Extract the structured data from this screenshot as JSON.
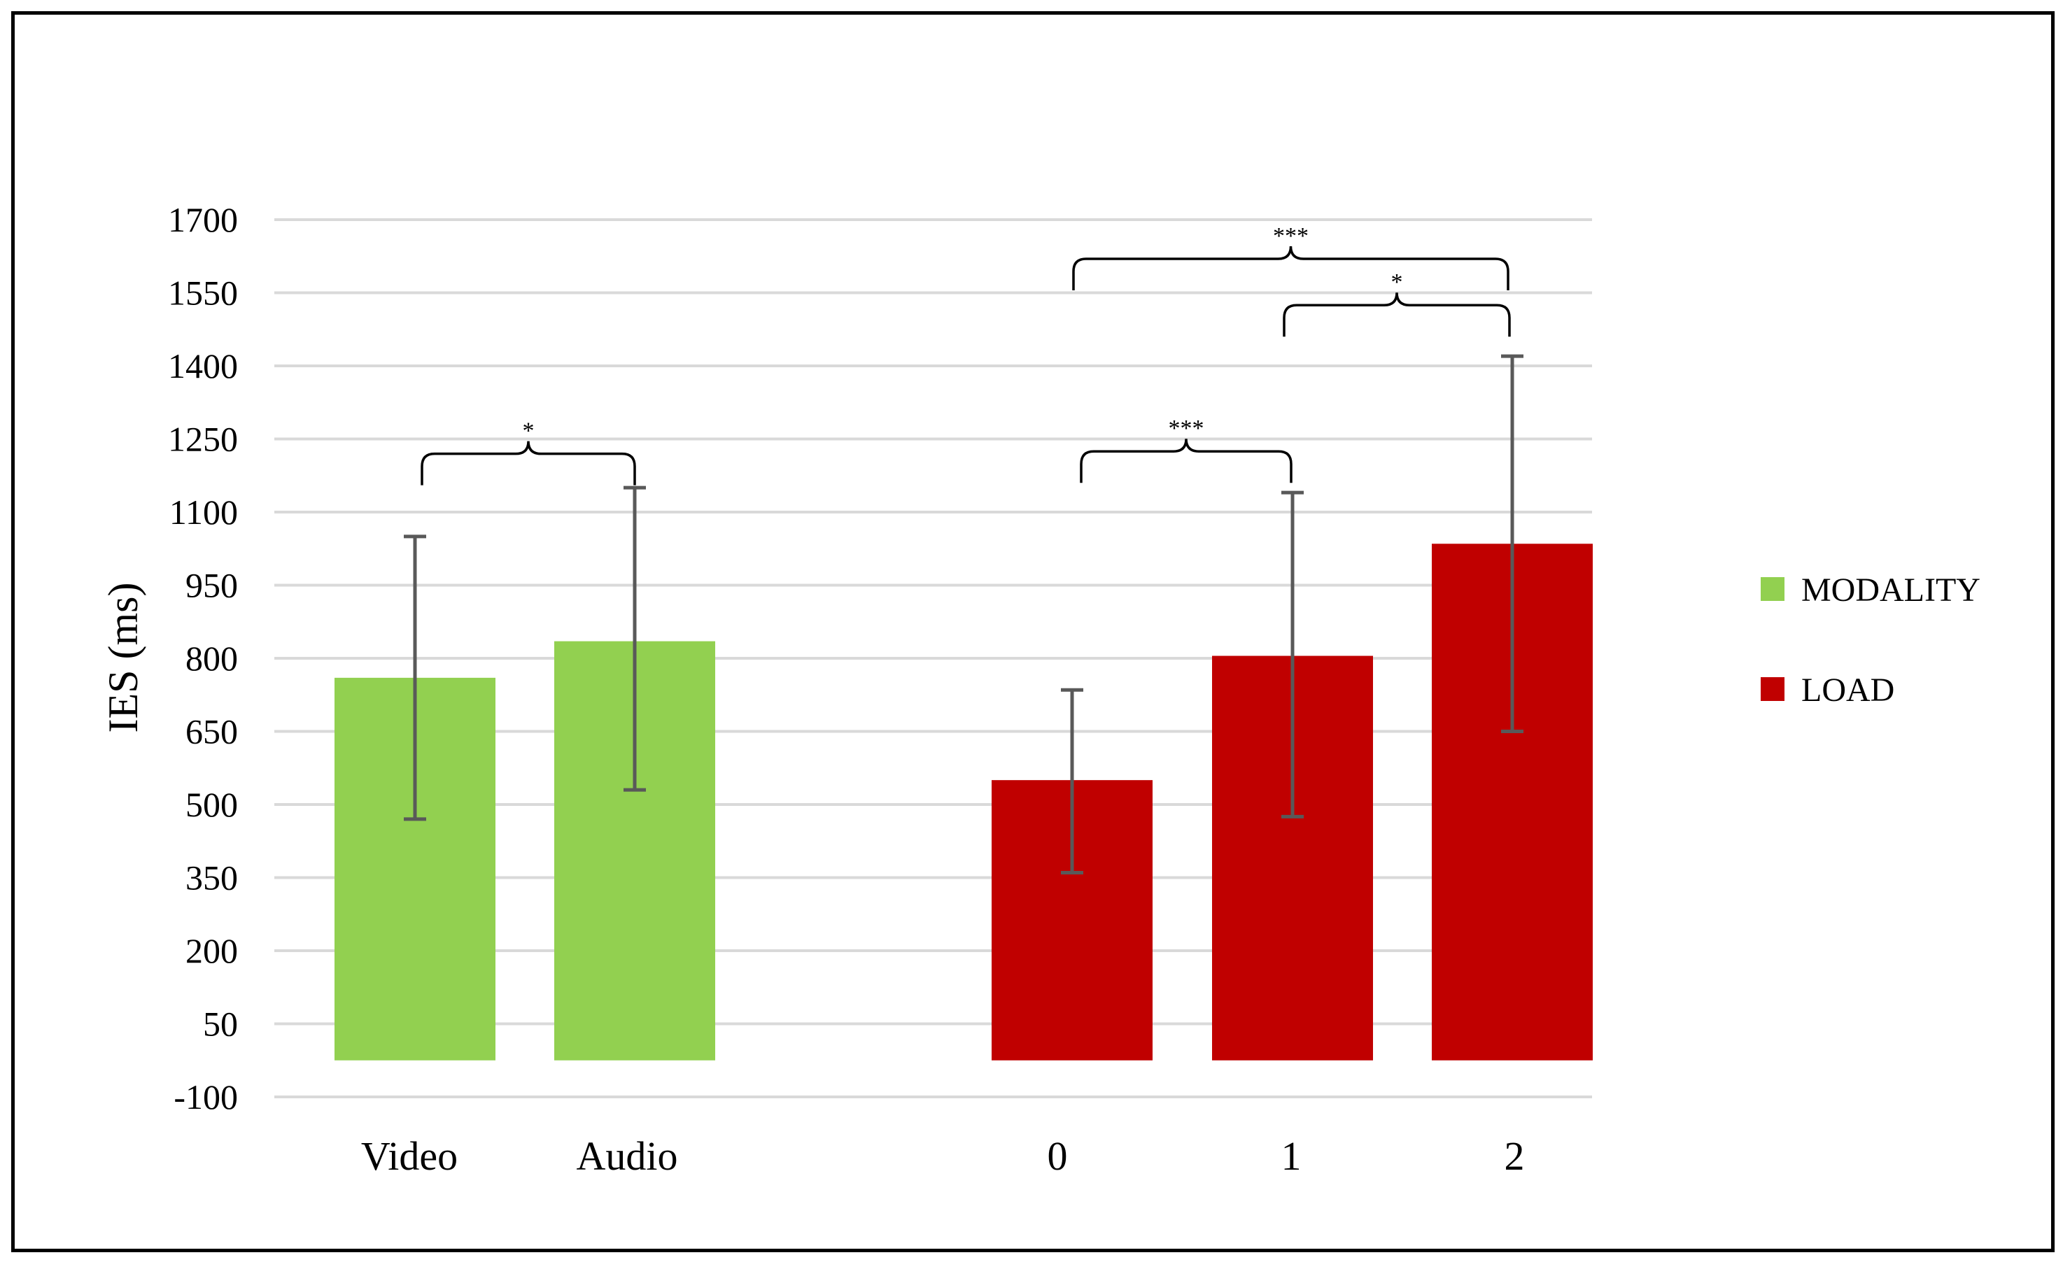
{
  "chart_data": {
    "type": "bar",
    "ylabel": "IES (ms)",
    "ylim": [
      -100,
      1700
    ],
    "yticks": [
      -100,
      50,
      200,
      350,
      500,
      650,
      800,
      950,
      1100,
      1250,
      1400,
      1550,
      1700
    ],
    "grid": true,
    "legend_position": "right",
    "series": [
      {
        "name": "MODALITY",
        "color": "#92d050",
        "categories": [
          "Video",
          "Audio"
        ],
        "values": [
          760,
          835
        ],
        "error_low": [
          470,
          530
        ],
        "error_high": [
          1050,
          1150
        ]
      },
      {
        "name": "LOAD",
        "color": "#c00000",
        "categories": [
          "0",
          "1",
          "2"
        ],
        "values": [
          550,
          805,
          1035
        ],
        "error_low": [
          360,
          475,
          650
        ],
        "error_high": [
          735,
          1140,
          1420
        ]
      }
    ],
    "significance": [
      {
        "from": "Video",
        "to": "Audio",
        "label": "*",
        "y": 1155
      },
      {
        "from": "0",
        "to": "1",
        "label": "***",
        "y": 1160
      },
      {
        "from": "1",
        "to": "2",
        "label": "*",
        "y": 1460
      },
      {
        "from": "0",
        "to": "2",
        "label": "***",
        "y": 1555
      }
    ]
  }
}
